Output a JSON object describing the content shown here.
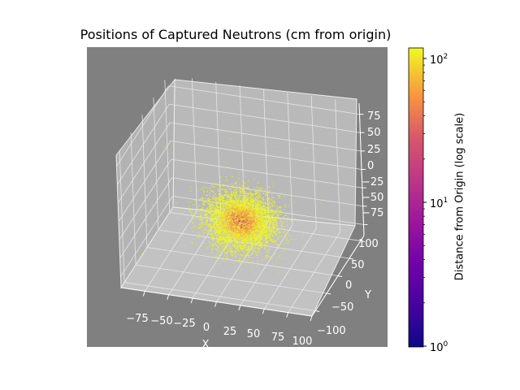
{
  "chart_data": {
    "type": "scatter",
    "projection": "3d",
    "title": "Positions of Captured Neutrons (cm from origin)",
    "xlabel": "X",
    "ylabel": "Y",
    "zlabel": "",
    "xlim": [
      -100,
      100
    ],
    "ylim": [
      -115,
      115
    ],
    "zlim": [
      -90,
      90
    ],
    "x_ticks": [
      "−75",
      "−50",
      "−25",
      "0",
      "25",
      "50",
      "75",
      "100"
    ],
    "y_ticks": [
      "−100",
      "−50",
      "0",
      "50",
      "100"
    ],
    "z_ticks": [
      "75",
      "50",
      "25",
      "0",
      "−25",
      "−50",
      "−75"
    ],
    "cloud": {
      "center": [
        0,
        0,
        -35
      ],
      "spread_cm": 18,
      "approx_points": 5000
    },
    "colormap": "plasma",
    "colorbar": {
      "label": "Distance from Origin (log scale)",
      "scale": "log",
      "range": [
        1,
        120
      ],
      "ticks": [
        "10",
        "10",
        "10"
      ],
      "tick_exponents": [
        "0",
        "1",
        "2"
      ]
    },
    "colors": {
      "axes_background": "#808080",
      "pane_back": "#b9b9b9",
      "pane_side": "#b3b3b3",
      "pane_floor": "#c2c2c2",
      "grid": "#e6e6e6"
    }
  }
}
